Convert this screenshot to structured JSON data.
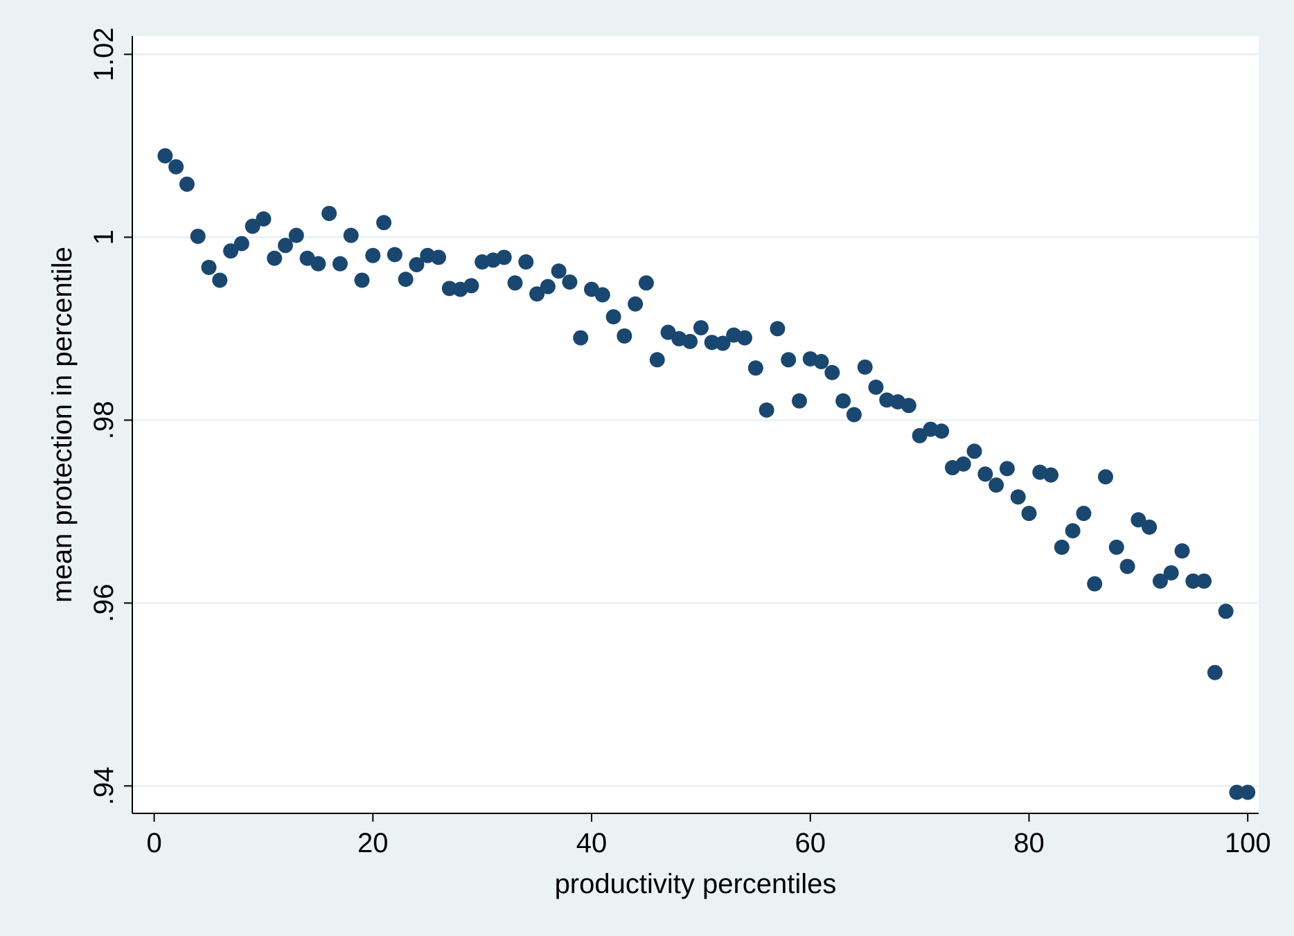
{
  "chart_data": {
    "type": "scatter",
    "title": "",
    "xlabel": "productivity percentiles",
    "ylabel": "mean protection in percentile",
    "xlim": [
      -2,
      101
    ],
    "ylim": [
      0.937,
      1.022
    ],
    "x_ticks": [
      0,
      20,
      40,
      60,
      80,
      100
    ],
    "x_tick_labels": [
      "0",
      "20",
      "40",
      "60",
      "80",
      "100"
    ],
    "y_ticks": [
      0.94,
      0.96,
      0.98,
      1.0,
      1.02
    ],
    "y_tick_labels": [
      ".94",
      ".96",
      ".98",
      "1",
      "1.02"
    ],
    "grid": "horizontal",
    "legend": "none",
    "colors": {
      "outer_background": "#eaf2f3",
      "plot_background": "#ffffff",
      "marker": "#1a476f",
      "grid": "#eaf2f3",
      "axis": "#000000"
    },
    "series": [
      {
        "x": [
          1,
          2,
          3,
          4,
          5,
          6,
          7,
          8,
          9,
          10,
          11,
          12,
          13,
          14,
          15,
          16,
          17,
          18,
          19,
          20,
          21,
          22,
          23,
          24,
          25,
          26,
          27,
          28,
          29,
          30,
          31,
          32,
          33,
          34,
          35,
          36,
          37,
          38,
          39,
          40,
          41,
          42,
          43,
          44,
          45,
          46,
          47,
          48,
          49,
          50,
          51,
          52,
          53,
          54,
          55,
          56,
          57,
          58,
          59,
          60,
          61,
          62,
          63,
          64,
          65,
          66,
          67,
          68,
          69,
          70,
          71,
          72,
          73,
          74,
          75,
          76,
          77,
          78,
          79,
          80,
          81,
          82,
          83,
          84,
          85,
          86,
          87,
          88,
          89,
          90,
          91,
          92,
          93,
          94,
          95,
          96,
          97,
          98,
          99,
          100
        ],
        "y": [
          1.0089,
          1.0077,
          1.0058,
          1.0001,
          0.9967,
          0.9953,
          0.9985,
          0.9993,
          1.0012,
          1.002,
          0.9977,
          0.9991,
          1.0002,
          0.9977,
          0.9971,
          1.0026,
          0.9971,
          1.0002,
          0.9953,
          0.998,
          1.0016,
          0.9981,
          0.9954,
          0.997,
          0.998,
          0.9978,
          0.9944,
          0.9943,
          0.9947,
          0.9973,
          0.9975,
          0.9978,
          0.995,
          0.9973,
          0.9938,
          0.9946,
          0.9963,
          0.9951,
          0.989,
          0.9943,
          0.9937,
          0.9913,
          0.9892,
          0.9927,
          0.995,
          0.9866,
          0.9896,
          0.9889,
          0.9886,
          0.9901,
          0.9885,
          0.9884,
          0.9893,
          0.989,
          0.9857,
          0.9811,
          0.99,
          0.9866,
          0.9821,
          0.9867,
          0.9864,
          0.9852,
          0.9821,
          0.9806,
          0.9858,
          0.9836,
          0.9822,
          0.982,
          0.9816,
          0.9783,
          0.979,
          0.9788,
          0.9748,
          0.9752,
          0.9766,
          0.9741,
          0.9729,
          0.9747,
          0.9716,
          0.9698,
          0.9743,
          0.974,
          0.9661,
          0.9679,
          0.9698,
          0.9621,
          0.9738,
          0.9661,
          0.964,
          0.9691,
          0.9683,
          0.9624,
          0.9633,
          0.9657,
          0.9624,
          0.9624,
          0.9524,
          0.9591,
          0.9393,
          0.9393
        ]
      }
    ]
  }
}
